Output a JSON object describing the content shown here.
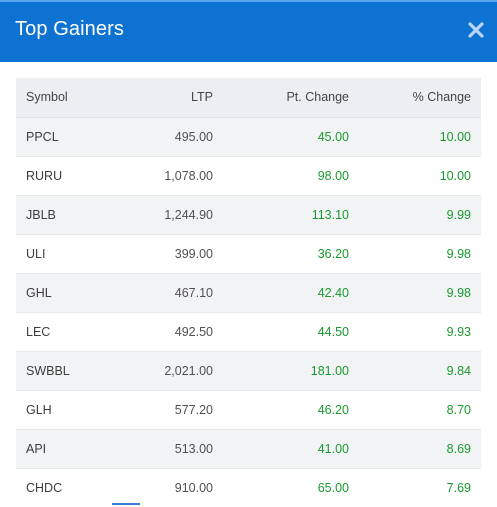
{
  "modal": {
    "title": "Top Gainers",
    "close_icon": "close-icon",
    "header_color": "#0d72d2"
  },
  "table": {
    "headers": {
      "symbol": "Symbol",
      "ltp": "LTP",
      "pt_change": "Pt. Change",
      "pct_change": "% Change"
    },
    "rows": [
      {
        "symbol": "PPCL",
        "ltp": "495.00",
        "pt_change": "45.00",
        "pct_change": "10.00"
      },
      {
        "symbol": "RURU",
        "ltp": "1,078.00",
        "pt_change": "98.00",
        "pct_change": "10.00"
      },
      {
        "symbol": "JBLB",
        "ltp": "1,244.90",
        "pt_change": "113.10",
        "pct_change": "9.99"
      },
      {
        "symbol": "ULI",
        "ltp": "399.00",
        "pt_change": "36.20",
        "pct_change": "9.98"
      },
      {
        "symbol": "GHL",
        "ltp": "467.10",
        "pt_change": "42.40",
        "pct_change": "9.98"
      },
      {
        "symbol": "LEC",
        "ltp": "492.50",
        "pt_change": "44.50",
        "pct_change": "9.93"
      },
      {
        "symbol": "SWBBL",
        "ltp": "2,021.00",
        "pt_change": "181.00",
        "pct_change": "9.84"
      },
      {
        "symbol": "GLH",
        "ltp": "577.20",
        "pt_change": "46.20",
        "pct_change": "8.70"
      },
      {
        "symbol": "API",
        "ltp": "513.00",
        "pt_change": "41.00",
        "pct_change": "8.69"
      },
      {
        "symbol": "CHDC",
        "ltp": "910.00",
        "pt_change": "65.00",
        "pct_change": "7.69"
      }
    ],
    "positive_color": "#1a9a2e"
  }
}
